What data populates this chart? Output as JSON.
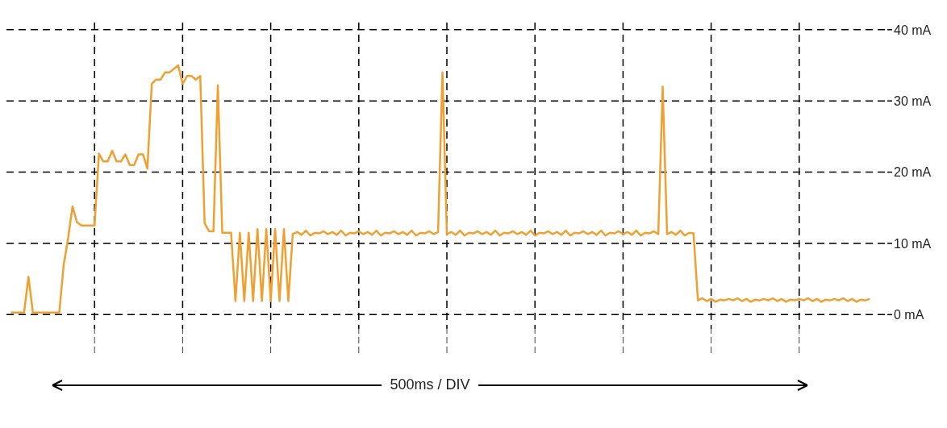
{
  "chart_data": {
    "type": "line",
    "xlabel": "500ms / DIV",
    "color": "#f0a030",
    "categories": [
      null,
      null,
      null,
      null,
      null,
      null,
      null,
      null,
      null,
      null,
      null,
      null,
      null,
      null,
      null,
      null,
      null,
      null,
      null,
      null,
      null,
      null,
      null,
      null,
      null,
      null,
      null,
      null,
      null,
      null,
      null,
      null,
      null,
      null,
      null,
      null,
      null,
      null,
      null,
      null,
      null,
      null,
      null,
      null,
      null,
      null,
      null,
      null,
      null,
      null,
      null,
      null,
      null,
      null,
      null,
      null,
      null,
      null,
      null,
      null,
      null,
      null,
      null,
      null,
      null,
      null,
      null,
      null,
      null,
      null,
      null,
      null,
      null,
      null,
      null,
      null,
      null,
      null,
      null,
      null,
      null,
      null,
      null,
      null,
      null,
      null,
      null,
      null,
      null,
      null,
      null,
      null,
      null,
      null,
      null,
      null,
      null,
      null,
      null,
      null,
      null,
      null,
      null,
      null,
      null,
      null,
      null,
      null,
      null,
      null,
      null,
      null,
      null,
      null,
      null,
      null,
      null,
      null,
      null,
      null,
      null,
      null,
      null,
      null,
      null,
      null,
      null,
      null,
      null,
      null,
      null,
      null,
      null,
      null,
      null,
      null,
      null,
      null,
      null,
      null,
      null,
      null,
      null,
      null,
      null,
      null,
      null,
      null,
      null,
      null,
      null,
      null,
      null,
      null,
      null,
      null,
      null,
      null,
      null,
      null,
      null,
      null,
      null,
      null,
      null,
      null,
      null,
      null,
      null,
      null,
      null,
      null,
      null,
      null,
      null,
      null,
      null,
      null,
      null,
      null,
      null,
      null,
      null,
      null,
      null,
      null,
      null,
      null,
      null,
      null,
      null,
      null,
      null,
      null,
      null,
      null
    ],
    "values": [
      0.3,
      0.3,
      0.3,
      0.3,
      5.3,
      0.3,
      0.3,
      0.3,
      0.3,
      0.3,
      0.3,
      0.3,
      7,
      10.7,
      15.2,
      13,
      12.5,
      12.5,
      12.5,
      12.5,
      22.6,
      21.5,
      21.5,
      23,
      21.5,
      21.5,
      22.5,
      21,
      21,
      22.5,
      22.5,
      20.5,
      32.4,
      33,
      33,
      34,
      34,
      34.5,
      35,
      32.4,
      33.5,
      33.5,
      33,
      33.5,
      12.8,
      11.7,
      11.7,
      32.2,
      11.5,
      11.5,
      11.5,
      1.9,
      11.5,
      1.9,
      11.5,
      1.9,
      12,
      1.9,
      12,
      1.9,
      12,
      1.9,
      12,
      1.9,
      11.3,
      11.6,
      11.2,
      11.8,
      11.1,
      11.5,
      11.4,
      11.7,
      11.3,
      11.6,
      11.2,
      11.8,
      11.1,
      11.5,
      11.4,
      11.7,
      11.3,
      11.6,
      11.2,
      11.8,
      11.1,
      11.5,
      11.4,
      11.7,
      11.3,
      11.6,
      11.2,
      11.8,
      11.1,
      11.5,
      11.4,
      11.7,
      11.3,
      11.6,
      34,
      11.3,
      11.6,
      11.2,
      11.8,
      11.1,
      11.5,
      11.4,
      11.7,
      11.3,
      11.6,
      11.2,
      11.8,
      11.1,
      11.5,
      11.4,
      11.7,
      11.3,
      11.6,
      11.2,
      11.8,
      11.1,
      11.5,
      11.4,
      11.7,
      11.3,
      11.6,
      11.2,
      11.8,
      11.1,
      11.5,
      11.4,
      11.7,
      11.3,
      11.6,
      11.2,
      11.8,
      11.1,
      11.5,
      11.4,
      11.7,
      11.3,
      11.6,
      11.2,
      11.8,
      11.1,
      11.5,
      11.4,
      11.7,
      11.3,
      32,
      11.3,
      11.6,
      11.2,
      11.8,
      11.1,
      11.5,
      11.4,
      2,
      2.3,
      1.9,
      2.2,
      1.8,
      2.1,
      2,
      2.2,
      2,
      2.3,
      1.9,
      2.2,
      1.8,
      2.1,
      2,
      2.2,
      2,
      2.3,
      1.9,
      2.2,
      1.8,
      2.1,
      2,
      2.2,
      2,
      2.3,
      1.9,
      2.2,
      1.8,
      2.1,
      2,
      2.2,
      2,
      2.3,
      1.9,
      2.2,
      1.8,
      2.1,
      2,
      2.2
    ],
    "ylim": [
      -2,
      41
    ],
    "yticks": [
      {
        "value": 0,
        "label": "0 mA"
      },
      {
        "value": 10,
        "label": "10 mA"
      },
      {
        "value": 20,
        "label": "20 mA"
      },
      {
        "value": 30,
        "label": "30 mA"
      },
      {
        "value": 40,
        "label": "40 mA"
      }
    ],
    "grid": true,
    "tick_labels": "y"
  }
}
